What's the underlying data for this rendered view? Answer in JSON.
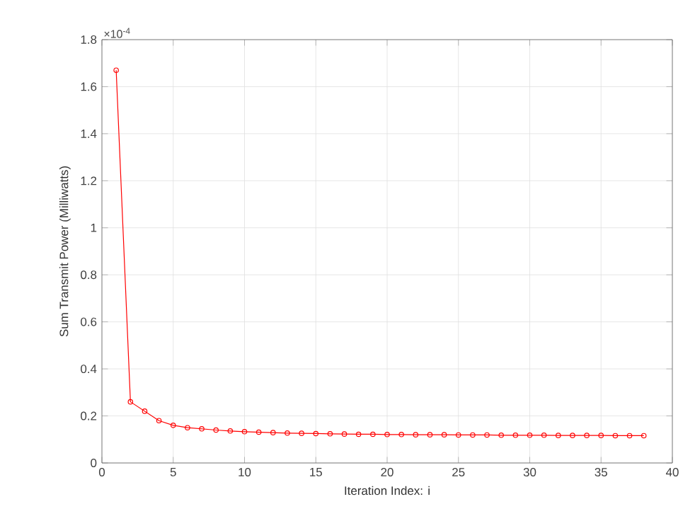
{
  "chart_data": {
    "type": "line",
    "xlabel": "Iteration Index: i",
    "ylabel": "Sum Transmit Power (Milliwatts)",
    "annotations": [
      "×10$^{-4}$"
    ],
    "x": [
      1,
      2,
      3,
      4,
      5,
      6,
      7,
      8,
      9,
      10,
      11,
      12,
      13,
      14,
      15,
      16,
      17,
      18,
      19,
      20,
      21,
      22,
      23,
      24,
      25,
      26,
      27,
      28,
      29,
      30,
      31,
      32,
      33,
      34,
      35,
      36,
      37,
      38
    ],
    "series": [
      {
        "color": "#ff0000",
        "values": [
          1.67,
          0.26,
          0.22,
          0.18,
          0.16,
          0.15,
          0.145,
          0.14,
          0.136,
          0.133,
          0.131,
          0.129,
          0.127,
          0.126,
          0.125,
          0.124,
          0.123,
          0.122,
          0.122,
          0.121,
          0.121,
          0.12,
          0.12,
          0.12,
          0.119,
          0.119,
          0.119,
          0.118,
          0.118,
          0.118,
          0.118,
          0.117,
          0.117,
          0.117,
          0.117,
          0.116,
          0.116,
          0.116
        ]
      }
    ],
    "xlim": [
      0,
      40
    ],
    "xticks": [
      0,
      5,
      10,
      15,
      20,
      25,
      30,
      35,
      40
    ],
    "ylim": [
      0,
      1.8
    ],
    "yticks": [
      0,
      0.2,
      0.4,
      0.6,
      0.8,
      1,
      1.2,
      1.4,
      1.6,
      1.8
    ],
    "grid": true,
    "marker": "circle",
    "line_style": "solid"
  }
}
